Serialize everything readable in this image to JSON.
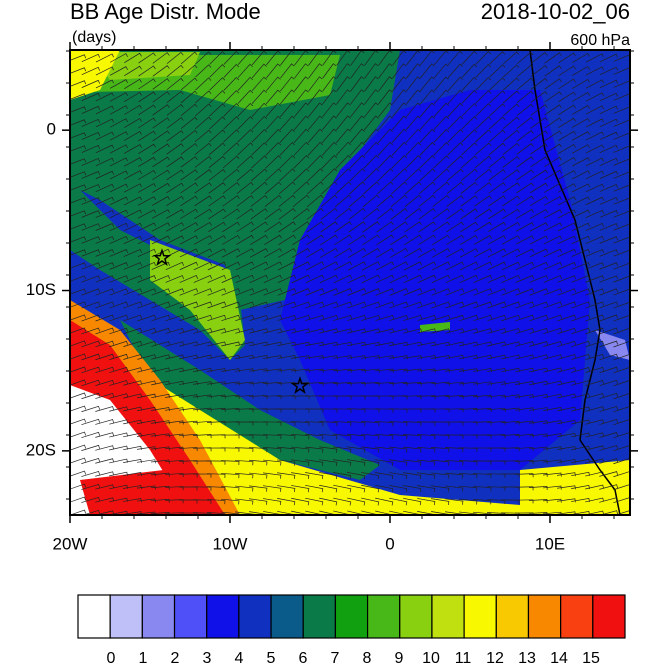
{
  "header": {
    "title": "BB Age Distr. Mode",
    "units": "(days)",
    "time": "2018-10-02_06",
    "level": "600 hPa"
  },
  "map": {
    "lonlim": [
      -20,
      15
    ],
    "latlim": [
      -24,
      5
    ],
    "lonticks": [
      {
        "value": -20,
        "label": "20W"
      },
      {
        "value": -10,
        "label": "10W"
      },
      0,
      {
        "value": 10,
        "label": "10E"
      }
    ],
    "latticks": [
      0,
      {
        "value": -10,
        "label": "10S"
      },
      {
        "value": -20,
        "label": "20S"
      }
    ]
  },
  "colorbar": {
    "levels": [
      0,
      1,
      2,
      3,
      4,
      5,
      6,
      7,
      8,
      9,
      10,
      11,
      12,
      13,
      14,
      15
    ],
    "colors": [
      "#ffffff",
      "#c0c0f8",
      "#8888f0",
      "#5050f8",
      "#1010e8",
      "#1030c0",
      "#0a5a8a",
      "#0a7a48",
      "#10a010",
      "#48b818",
      "#88d010",
      "#c0e010",
      "#f8f800",
      "#f8c800",
      "#f88800",
      "#f84010",
      "#f01010"
    ]
  }
}
